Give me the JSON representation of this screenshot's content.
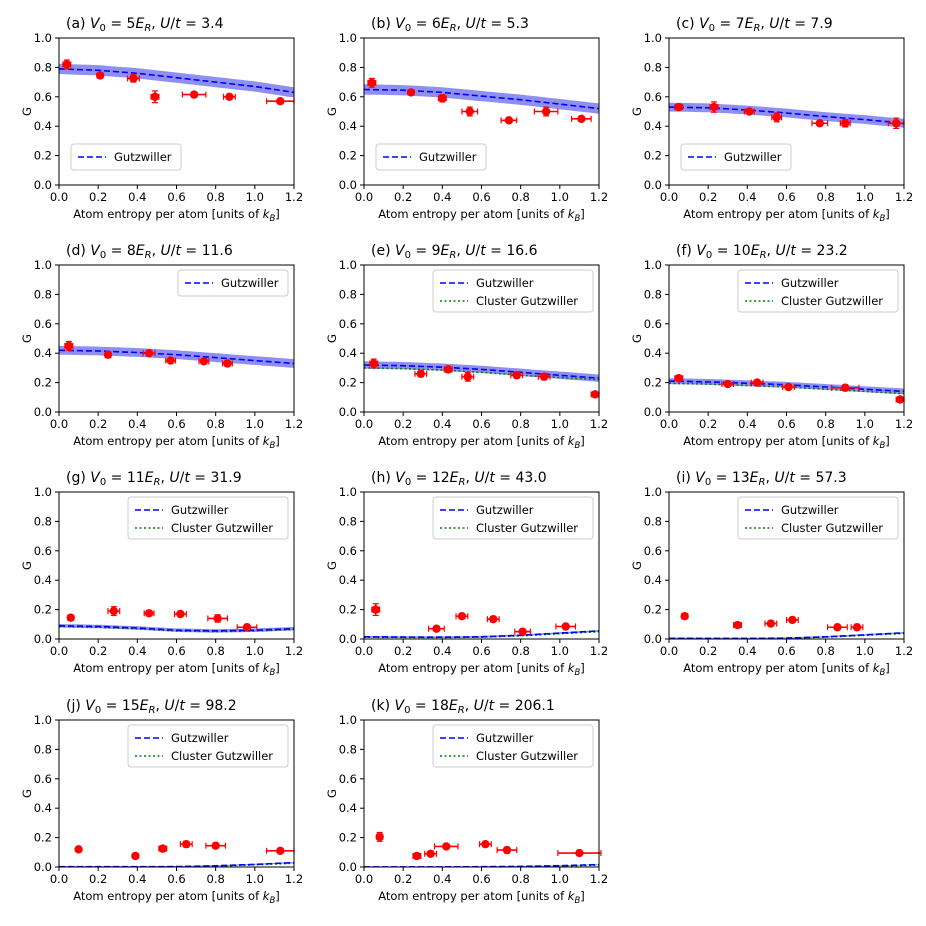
{
  "figure": {
    "xlabel": "Atom entropy per atom [units of k_B]",
    "ylabel": "G",
    "xlim": [
      0,
      1.2
    ],
    "ylim": [
      0,
      1.0
    ],
    "xticks": [
      "0.0",
      "0.2",
      "0.4",
      "0.6",
      "0.8",
      "1.0",
      "1.2"
    ],
    "yticks": [
      "0.0",
      "0.2",
      "0.4",
      "0.6",
      "0.8",
      "1.0"
    ],
    "colors": {
      "gutzwiller": "#0000ff",
      "band": "#7b7bf0",
      "cluster": "#008000",
      "data": "#ff0000",
      "zero_line": "#555555"
    },
    "legend": {
      "gutzwiller": "Gutzwiller",
      "cluster": "Cluster Gutzwiller"
    }
  },
  "chart_data": [
    {
      "type": "line",
      "panel": "a",
      "title_prefix": "(a) ",
      "V0": "5",
      "Ut": "3.4",
      "cluster": false,
      "legend_loc": "center-left",
      "gutz": {
        "x": [
          0,
          0.2,
          0.4,
          0.6,
          0.8,
          1.0,
          1.2
        ],
        "y": [
          0.79,
          0.78,
          0.76,
          0.73,
          0.7,
          0.67,
          0.63
        ]
      },
      "band_halfwidth": 0.035,
      "points": [
        {
          "x": 0.04,
          "y": 0.82,
          "xerr": 0.02,
          "yerr": 0.03
        },
        {
          "x": 0.21,
          "y": 0.745,
          "xerr": 0.015,
          "yerr": 0.015
        },
        {
          "x": 0.38,
          "y": 0.725,
          "xerr": 0.03,
          "yerr": 0.025
        },
        {
          "x": 0.49,
          "y": 0.6,
          "xerr": 0.02,
          "yerr": 0.04
        },
        {
          "x": 0.69,
          "y": 0.615,
          "xerr": 0.06,
          "yerr": 0.015
        },
        {
          "x": 0.87,
          "y": 0.6,
          "xerr": 0.03,
          "yerr": 0.015
        },
        {
          "x": 1.13,
          "y": 0.57,
          "xerr": 0.07,
          "yerr": 0.015
        }
      ]
    },
    {
      "type": "line",
      "panel": "b",
      "title_prefix": "(b) ",
      "V0": "6",
      "Ut": "5.3",
      "cluster": false,
      "legend_loc": "center-left",
      "gutz": {
        "x": [
          0,
          0.2,
          0.4,
          0.6,
          0.8,
          1.0,
          1.2
        ],
        "y": [
          0.65,
          0.645,
          0.63,
          0.605,
          0.58,
          0.55,
          0.52
        ]
      },
      "band_halfwidth": 0.035,
      "points": [
        {
          "x": 0.04,
          "y": 0.695,
          "xerr": 0.02,
          "yerr": 0.03
        },
        {
          "x": 0.24,
          "y": 0.63,
          "xerr": 0.015,
          "yerr": 0.015
        },
        {
          "x": 0.4,
          "y": 0.59,
          "xerr": 0.02,
          "yerr": 0.025
        },
        {
          "x": 0.54,
          "y": 0.5,
          "xerr": 0.04,
          "yerr": 0.03
        },
        {
          "x": 0.74,
          "y": 0.44,
          "xerr": 0.04,
          "yerr": 0.015
        },
        {
          "x": 0.93,
          "y": 0.5,
          "xerr": 0.06,
          "yerr": 0.03
        },
        {
          "x": 1.11,
          "y": 0.45,
          "xerr": 0.05,
          "yerr": 0.015
        }
      ]
    },
    {
      "type": "line",
      "panel": "c",
      "title_prefix": "(c) ",
      "V0": "7",
      "Ut": "7.9",
      "cluster": false,
      "legend_loc": "center-left",
      "gutz": {
        "x": [
          0,
          0.2,
          0.4,
          0.6,
          0.8,
          1.0,
          1.2
        ],
        "y": [
          0.53,
          0.525,
          0.51,
          0.49,
          0.465,
          0.445,
          0.42
        ]
      },
      "band_halfwidth": 0.03,
      "points": [
        {
          "x": 0.05,
          "y": 0.53,
          "xerr": 0.02,
          "yerr": 0.02
        },
        {
          "x": 0.23,
          "y": 0.53,
          "xerr": 0.02,
          "yerr": 0.035
        },
        {
          "x": 0.41,
          "y": 0.5,
          "xerr": 0.025,
          "yerr": 0.015
        },
        {
          "x": 0.55,
          "y": 0.46,
          "xerr": 0.025,
          "yerr": 0.03
        },
        {
          "x": 0.77,
          "y": 0.42,
          "xerr": 0.04,
          "yerr": 0.015
        },
        {
          "x": 0.9,
          "y": 0.42,
          "xerr": 0.025,
          "yerr": 0.025
        },
        {
          "x": 1.16,
          "y": 0.42,
          "xerr": 0.04,
          "yerr": 0.035
        }
      ]
    },
    {
      "type": "line",
      "panel": "d",
      "title_prefix": "(d) ",
      "V0": "8",
      "Ut": "11.6",
      "cluster": false,
      "legend_loc": "upper-right",
      "gutz": {
        "x": [
          0,
          0.2,
          0.4,
          0.6,
          0.8,
          1.0,
          1.2
        ],
        "y": [
          0.42,
          0.415,
          0.405,
          0.39,
          0.37,
          0.35,
          0.33
        ]
      },
      "band_halfwidth": 0.03,
      "points": [
        {
          "x": 0.05,
          "y": 0.45,
          "xerr": 0.02,
          "yerr": 0.03
        },
        {
          "x": 0.25,
          "y": 0.39,
          "xerr": 0.015,
          "yerr": 0.02
        },
        {
          "x": 0.46,
          "y": 0.4,
          "xerr": 0.03,
          "yerr": 0.015
        },
        {
          "x": 0.57,
          "y": 0.35,
          "xerr": 0.025,
          "yerr": 0.015
        },
        {
          "x": 0.74,
          "y": 0.345,
          "xerr": 0.025,
          "yerr": 0.015
        },
        {
          "x": 0.86,
          "y": 0.33,
          "xerr": 0.025,
          "yerr": 0.02
        }
      ]
    },
    {
      "type": "line",
      "panel": "e",
      "title_prefix": "(e) ",
      "V0": "9",
      "Ut": "16.6",
      "cluster": true,
      "legend_loc": "upper-right",
      "gutz": {
        "x": [
          0,
          0.2,
          0.4,
          0.6,
          0.8,
          1.0,
          1.2
        ],
        "y": [
          0.32,
          0.315,
          0.305,
          0.29,
          0.27,
          0.25,
          0.23
        ]
      },
      "band_halfwidth": 0.025,
      "clus": {
        "x": [
          0,
          0.2,
          0.4,
          0.6,
          0.8,
          1.0,
          1.2
        ],
        "y": [
          0.3,
          0.295,
          0.285,
          0.27,
          0.25,
          0.235,
          0.22
        ]
      },
      "points": [
        {
          "x": 0.05,
          "y": 0.33,
          "xerr": 0.02,
          "yerr": 0.03
        },
        {
          "x": 0.29,
          "y": 0.26,
          "xerr": 0.03,
          "yerr": 0.02
        },
        {
          "x": 0.43,
          "y": 0.29,
          "xerr": 0.02,
          "yerr": 0.02
        },
        {
          "x": 0.53,
          "y": 0.24,
          "xerr": 0.03,
          "yerr": 0.03
        },
        {
          "x": 0.78,
          "y": 0.25,
          "xerr": 0.03,
          "yerr": 0.02
        },
        {
          "x": 0.92,
          "y": 0.24,
          "xerr": 0.03,
          "yerr": 0.02
        },
        {
          "x": 1.18,
          "y": 0.12,
          "xerr": 0.02,
          "yerr": 0.015
        }
      ]
    },
    {
      "type": "line",
      "panel": "f",
      "title_prefix": "(f) ",
      "V0": "10",
      "Ut": "23.2",
      "cluster": true,
      "legend_loc": "upper-right",
      "gutz": {
        "x": [
          0,
          0.2,
          0.4,
          0.6,
          0.8,
          1.0,
          1.2
        ],
        "y": [
          0.21,
          0.205,
          0.195,
          0.185,
          0.17,
          0.155,
          0.14
        ]
      },
      "band_halfwidth": 0.02,
      "clus": {
        "x": [
          0,
          0.2,
          0.4,
          0.6,
          0.8,
          1.0,
          1.2
        ],
        "y": [
          0.195,
          0.19,
          0.18,
          0.17,
          0.155,
          0.14,
          0.125
        ]
      },
      "points": [
        {
          "x": 0.05,
          "y": 0.23,
          "xerr": 0.02,
          "yerr": 0.015
        },
        {
          "x": 0.3,
          "y": 0.19,
          "xerr": 0.03,
          "yerr": 0.015
        },
        {
          "x": 0.45,
          "y": 0.2,
          "xerr": 0.03,
          "yerr": 0.015
        },
        {
          "x": 0.61,
          "y": 0.17,
          "xerr": 0.03,
          "yerr": 0.015
        },
        {
          "x": 0.9,
          "y": 0.165,
          "xerr": 0.07,
          "yerr": 0.02
        },
        {
          "x": 1.18,
          "y": 0.085,
          "xerr": 0.02,
          "yerr": 0.015
        }
      ]
    },
    {
      "type": "line",
      "panel": "g",
      "title_prefix": "(g) ",
      "V0": "11",
      "Ut": "31.9",
      "cluster": true,
      "legend_loc": "upper-right",
      "gutz": {
        "x": [
          0,
          0.2,
          0.4,
          0.6,
          0.8,
          1.0,
          1.2
        ],
        "y": [
          0.09,
          0.085,
          0.075,
          0.06,
          0.055,
          0.06,
          0.07
        ]
      },
      "band_halfwidth": 0.012,
      "clus": {
        "x": [
          0,
          0.2,
          0.4,
          0.6,
          0.8,
          1.0,
          1.2
        ],
        "y": [
          0.085,
          0.08,
          0.07,
          0.055,
          0.05,
          0.055,
          0.065
        ]
      },
      "points": [
        {
          "x": 0.06,
          "y": 0.145,
          "xerr": 0.015,
          "yerr": 0.015
        },
        {
          "x": 0.28,
          "y": 0.19,
          "xerr": 0.03,
          "yerr": 0.03
        },
        {
          "x": 0.46,
          "y": 0.175,
          "xerr": 0.025,
          "yerr": 0.015
        },
        {
          "x": 0.62,
          "y": 0.17,
          "xerr": 0.03,
          "yerr": 0.015
        },
        {
          "x": 0.81,
          "y": 0.14,
          "xerr": 0.05,
          "yerr": 0.025
        },
        {
          "x": 0.96,
          "y": 0.08,
          "xerr": 0.05,
          "yerr": 0.015
        }
      ]
    },
    {
      "type": "line",
      "panel": "h",
      "title_prefix": "(h) ",
      "V0": "12",
      "Ut": "43.0",
      "cluster": true,
      "legend_loc": "upper-right",
      "gutz": {
        "x": [
          0,
          0.2,
          0.4,
          0.6,
          0.8,
          1.0,
          1.2
        ],
        "y": [
          0.015,
          0.013,
          0.012,
          0.015,
          0.025,
          0.04,
          0.055
        ]
      },
      "band_halfwidth": 0.006,
      "clus": {
        "x": [
          0,
          0.2,
          0.4,
          0.6,
          0.8,
          1.0,
          1.2
        ],
        "y": [
          0.012,
          0.011,
          0.01,
          0.013,
          0.022,
          0.036,
          0.05
        ]
      },
      "points": [
        {
          "x": 0.06,
          "y": 0.2,
          "xerr": 0.02,
          "yerr": 0.04
        },
        {
          "x": 0.37,
          "y": 0.07,
          "xerr": 0.04,
          "yerr": 0.015
        },
        {
          "x": 0.5,
          "y": 0.155,
          "xerr": 0.03,
          "yerr": 0.015
        },
        {
          "x": 0.66,
          "y": 0.135,
          "xerr": 0.03,
          "yerr": 0.015
        },
        {
          "x": 0.81,
          "y": 0.05,
          "xerr": 0.04,
          "yerr": 0.015
        },
        {
          "x": 1.03,
          "y": 0.085,
          "xerr": 0.05,
          "yerr": 0.015
        }
      ]
    },
    {
      "type": "line",
      "panel": "i",
      "title_prefix": "(i) ",
      "V0": "13",
      "Ut": "57.3",
      "cluster": true,
      "legend_loc": "upper-right",
      "gutz": {
        "x": [
          0,
          0.2,
          0.4,
          0.6,
          0.8,
          1.0,
          1.2
        ],
        "y": [
          0.005,
          0.004,
          0.004,
          0.006,
          0.015,
          0.028,
          0.042
        ]
      },
      "band_halfwidth": 0.005,
      "clus": {
        "x": [
          0,
          0.2,
          0.4,
          0.6,
          0.8,
          1.0,
          1.2
        ],
        "y": [
          0.004,
          0.003,
          0.003,
          0.005,
          0.013,
          0.025,
          0.038
        ]
      },
      "points": [
        {
          "x": 0.08,
          "y": 0.155,
          "xerr": 0.015,
          "yerr": 0.015
        },
        {
          "x": 0.35,
          "y": 0.095,
          "xerr": 0.02,
          "yerr": 0.015
        },
        {
          "x": 0.52,
          "y": 0.105,
          "xerr": 0.03,
          "yerr": 0.015
        },
        {
          "x": 0.63,
          "y": 0.13,
          "xerr": 0.03,
          "yerr": 0.015
        },
        {
          "x": 0.86,
          "y": 0.08,
          "xerr": 0.05,
          "yerr": 0.01
        },
        {
          "x": 0.96,
          "y": 0.08,
          "xerr": 0.03,
          "yerr": 0.01
        }
      ]
    },
    {
      "type": "line",
      "panel": "j",
      "title_prefix": "(j) ",
      "V0": "15",
      "Ut": "98.2",
      "cluster": true,
      "legend_loc": "upper-right",
      "gutz": {
        "x": [
          0,
          0.2,
          0.4,
          0.6,
          0.8,
          1.0,
          1.2
        ],
        "y": [
          0.002,
          0.002,
          0.002,
          0.003,
          0.008,
          0.018,
          0.03
        ]
      },
      "band_halfwidth": 0.004,
      "clus": {
        "x": [
          0,
          0.2,
          0.4,
          0.6,
          0.8,
          1.0,
          1.2
        ],
        "y": [
          0.001,
          0.001,
          0.001,
          0.002,
          0.006,
          0.015,
          0.026
        ]
      },
      "points": [
        {
          "x": 0.1,
          "y": 0.12,
          "xerr": 0.01,
          "yerr": 0.01
        },
        {
          "x": 0.39,
          "y": 0.075,
          "xerr": 0.015,
          "yerr": 0.015
        },
        {
          "x": 0.53,
          "y": 0.125,
          "xerr": 0.02,
          "yerr": 0.01
        },
        {
          "x": 0.65,
          "y": 0.155,
          "xerr": 0.03,
          "yerr": 0.02
        },
        {
          "x": 0.8,
          "y": 0.145,
          "xerr": 0.05,
          "yerr": 0.015
        },
        {
          "x": 1.13,
          "y": 0.11,
          "xerr": 0.07,
          "yerr": 0.015
        }
      ]
    },
    {
      "type": "line",
      "panel": "k",
      "title_prefix": "(k) ",
      "V0": "18",
      "Ut": "206.1",
      "cluster": true,
      "legend_loc": "upper-right",
      "gutz": {
        "x": [
          0,
          0.2,
          0.4,
          0.6,
          0.8,
          1.0,
          1.2
        ],
        "y": [
          0.001,
          0.001,
          0.001,
          0.002,
          0.004,
          0.009,
          0.016
        ]
      },
      "band_halfwidth": 0.003,
      "clus": {
        "x": [
          0,
          0.2,
          0.4,
          0.6,
          0.8,
          1.0,
          1.2
        ],
        "y": [
          0.0,
          0.0,
          0.0,
          0.001,
          0.003,
          0.007,
          0.013
        ]
      },
      "points": [
        {
          "x": 0.08,
          "y": 0.205,
          "xerr": 0.015,
          "yerr": 0.03
        },
        {
          "x": 0.27,
          "y": 0.075,
          "xerr": 0.02,
          "yerr": 0.015
        },
        {
          "x": 0.34,
          "y": 0.09,
          "xerr": 0.03,
          "yerr": 0.015
        },
        {
          "x": 0.42,
          "y": 0.14,
          "xerr": 0.06,
          "yerr": 0.015
        },
        {
          "x": 0.62,
          "y": 0.155,
          "xerr": 0.03,
          "yerr": 0.015
        },
        {
          "x": 0.73,
          "y": 0.115,
          "xerr": 0.05,
          "yerr": 0.02
        },
        {
          "x": 1.1,
          "y": 0.095,
          "xerr": 0.11,
          "yerr": 0.01
        }
      ]
    }
  ]
}
